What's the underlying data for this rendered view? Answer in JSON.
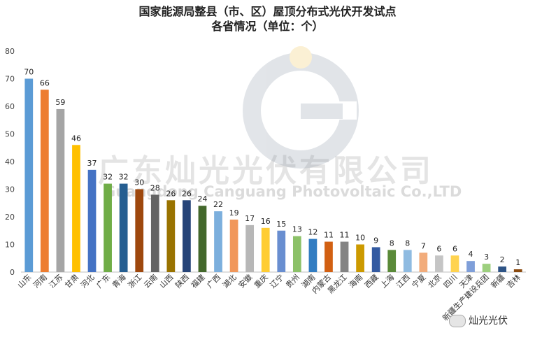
{
  "title_line1": "国家能源局整县（市、区）屋顶分布式光伏开发试点",
  "title_line2": "各省情况（单位：个）",
  "watermark_cn": "广东灿光光伏有限公司",
  "watermark_en": "Guangdong Canguang Photovoltaic Co.,LTD",
  "brand_label": "灿光光伏",
  "chart_data": {
    "type": "bar",
    "title": "国家能源局整县（市、区）屋顶分布式光伏开发试点 各省情况（单位：个）",
    "categories": [
      "山东",
      "河南",
      "江苏",
      "甘肃",
      "河北",
      "广东",
      "青海",
      "浙江",
      "云南",
      "山西",
      "陕西",
      "福建",
      "广西",
      "湖北",
      "安徽",
      "重庆",
      "辽宁",
      "贵州",
      "湖南",
      "内蒙古",
      "黑龙江",
      "海南",
      "西藏",
      "上海",
      "江西",
      "宁夏",
      "北京",
      "四川",
      "天津",
      "新疆生产建设兵团",
      "新疆",
      "吉林"
    ],
    "values": [
      70,
      66,
      59,
      46,
      37,
      32,
      32,
      30,
      28,
      26,
      26,
      24,
      22,
      19,
      17,
      16,
      15,
      13,
      12,
      11,
      11,
      10,
      9,
      8,
      8,
      7,
      6,
      6,
      4,
      3,
      2,
      1
    ],
    "colors": [
      "#5b9bd5",
      "#ed7d31",
      "#a5a5a5",
      "#ffc000",
      "#4472c4",
      "#70ad47",
      "#255e91",
      "#9e480e",
      "#636363",
      "#997300",
      "#264478",
      "#43682b",
      "#7cafdd",
      "#f1975a",
      "#b7b7b7",
      "#ffcd33",
      "#698ed0",
      "#8cc168",
      "#327dc2",
      "#d26012",
      "#848484",
      "#cc9a00",
      "#335aa1",
      "#5a8a39",
      "#8fbbe1",
      "#f2ac7b",
      "#c5c5c5",
      "#ffd34f",
      "#7f9fd9",
      "#9dcf7e",
      "#2e5486",
      "#8a4a0f"
    ],
    "yticks": [
      0,
      10,
      20,
      30,
      40,
      50,
      60,
      70,
      80
    ],
    "ylim": [
      0,
      80
    ],
    "xlabel": "",
    "ylabel": "",
    "grid": false
  }
}
